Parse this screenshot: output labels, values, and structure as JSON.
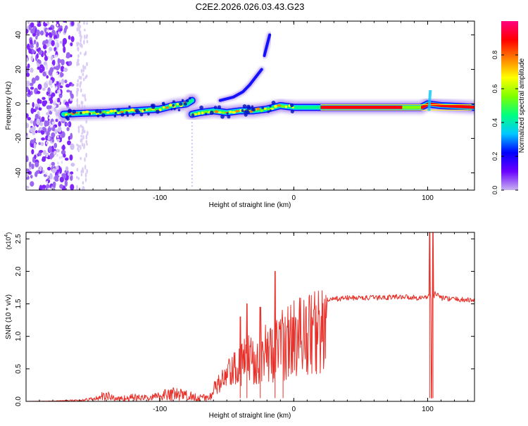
{
  "figure": {
    "title": "C2E2.2026.026.03.43.G23"
  },
  "chart_data": [
    {
      "type": "heatmap",
      "title": "C2E2.2026.026.03.43.G23",
      "xlabel": "Height of straight line (km)",
      "ylabel": "Frequency (Hz)",
      "xlim": [
        -200,
        135
      ],
      "ylim": [
        -50,
        48
      ],
      "xticks": [
        -100,
        0,
        100
      ],
      "xtick_labels": [
        "-100",
        "0",
        "100"
      ],
      "yticks": [
        -40,
        -20,
        0,
        20,
        40
      ],
      "ytick_labels": [
        "-40",
        "-20",
        "0",
        "20",
        "40"
      ],
      "colorbar": {
        "label": "Normalized spectral amplitude",
        "range": [
          0,
          1
        ],
        "ticks": [
          0,
          0.2,
          0.4,
          0.6,
          0.8
        ],
        "tick_labels": [
          "0.0",
          "0.2",
          "0.4",
          "0.6",
          "0.8"
        ],
        "colormap": [
          "#c8b4f0",
          "#6a00ff",
          "#0000ff",
          "#00c8ff",
          "#00ff80",
          "#80ff00",
          "#ffff00",
          "#ff8000",
          "#ff0000",
          "#ff0080"
        ]
      },
      "ridges": [
        {
          "name": "main-ridge-left",
          "x": [
            -172,
            -160,
            -140,
            -120,
            -100,
            -90,
            -80,
            -76
          ],
          "y": [
            -6,
            -5.5,
            -5,
            -4,
            -3,
            -1,
            0,
            2
          ]
        },
        {
          "name": "main-ridge-right",
          "x": [
            -76,
            -70,
            -60,
            -50,
            -40,
            -30,
            -20,
            -10,
            0,
            20,
            60,
            80,
            95,
            100,
            110,
            135
          ],
          "y": [
            -6,
            -5,
            -4,
            -5,
            -4,
            -4,
            -3,
            -1,
            -2,
            -2,
            -2,
            -2,
            -2,
            0,
            -1,
            -2
          ]
        },
        {
          "name": "rising-branch",
          "x": [
            -55,
            -45,
            -38,
            -33,
            -28,
            -24
          ],
          "y": [
            2,
            4,
            7,
            11,
            16,
            20
          ]
        },
        {
          "name": "faint-branch",
          "x": [
            -22,
            -20,
            -18
          ],
          "y": [
            28,
            34,
            40
          ]
        }
      ]
    },
    {
      "type": "line",
      "title": "",
      "xlabel": "Height of straight line (km)",
      "ylabel": "SNR (10 * v/v)",
      "yscale_label": "(x10",
      "yscale_exponent": "4",
      "yscale_suffix": ")",
      "xlim": [
        -200,
        135
      ],
      "ylim": [
        0,
        2.6
      ],
      "xticks": [
        -100,
        0,
        100
      ],
      "xtick_labels": [
        "-100",
        "0",
        "100"
      ],
      "yticks": [
        0,
        0.5,
        1.0,
        1.5,
        2.0,
        2.5
      ],
      "ytick_labels": [
        "0.0",
        "0.5",
        "1.0",
        "1.5",
        "2.0",
        "2.5"
      ],
      "series": [
        {
          "name": "SNR",
          "color": "#e8312a",
          "x": [
            -200,
            -180,
            -160,
            -150,
            -145,
            -140,
            -135,
            -130,
            -120,
            -110,
            -100,
            -95,
            -90,
            -80,
            -70,
            -65,
            -60,
            -55,
            -50,
            -45,
            -40,
            -35,
            -30,
            -25,
            -20,
            -15,
            -10,
            -5,
            0,
            5,
            10,
            20,
            30,
            40,
            60,
            80,
            95,
            100,
            102,
            103,
            104,
            106,
            110,
            120,
            135
          ],
          "envelope": [
            0.0,
            0.01,
            0.03,
            0.07,
            0.12,
            0.18,
            0.1,
            0.08,
            0.12,
            0.1,
            0.15,
            0.25,
            0.22,
            0.18,
            0.12,
            0.1,
            0.25,
            0.4,
            0.55,
            0.65,
            0.75,
            0.9,
            0.95,
            1.0,
            1.05,
            1.1,
            1.2,
            1.3,
            1.38,
            1.45,
            1.5,
            1.55,
            1.58,
            1.6,
            1.6,
            1.62,
            1.6,
            1.62,
            1.65,
            1.5,
            1.6,
            1.68,
            1.6,
            1.58,
            1.56
          ],
          "spikes": [
            {
              "x": -40,
              "y": 1.3
            },
            {
              "x": -35,
              "y": 1.5
            },
            {
              "x": -25,
              "y": 1.45
            },
            {
              "x": -14,
              "y": 2.0
            },
            {
              "x": -8,
              "y": 1.2
            },
            {
              "x": 101.5,
              "y": 2.6
            },
            {
              "x": 103,
              "y": 0.05
            },
            {
              "x": 104,
              "y": 2.6
            }
          ]
        }
      ]
    }
  ]
}
